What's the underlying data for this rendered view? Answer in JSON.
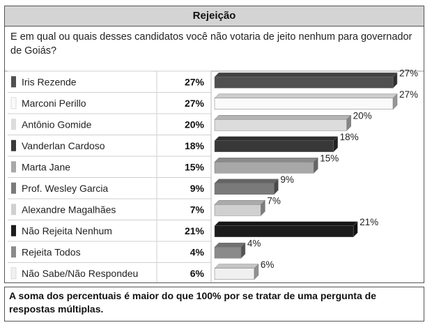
{
  "header": {
    "title": "Rejeição"
  },
  "question": "E em qual ou quais desses candidatos você não votaria de jeito nenhum para governador de Goiás?",
  "footnote": "A soma dos percentuais é maior do que 100% por se tratar de uma pergunta de respostas múltiplas.",
  "chart_data": {
    "type": "bar",
    "orientation": "horizontal",
    "categories": [
      "Iris Rezende",
      "Marconi Perillo",
      "Antônio Gomide",
      "Vanderlan Cardoso",
      "Marta Jane",
      "Prof. Wesley Garcia",
      "Alexandre Magalhães",
      "Não Rejeita Nenhum",
      "Rejeita Todos",
      "Não Sabe/Não Respondeu"
    ],
    "values": [
      27,
      27,
      20,
      18,
      15,
      9,
      7,
      21,
      4,
      6
    ],
    "value_labels": [
      "27%",
      "27%",
      "20%",
      "18%",
      "15%",
      "9%",
      "7%",
      "21%",
      "4%",
      "6%"
    ],
    "colors": [
      "#505050",
      "#fafafa",
      "#dcdcdc",
      "#383838",
      "#a8a8a8",
      "#7a7a7a",
      "#d0d0d0",
      "#1c1c1c",
      "#8a8a8a",
      "#f0f0f0"
    ],
    "xlim": [
      0,
      27
    ],
    "grid": false,
    "legend": "none"
  }
}
